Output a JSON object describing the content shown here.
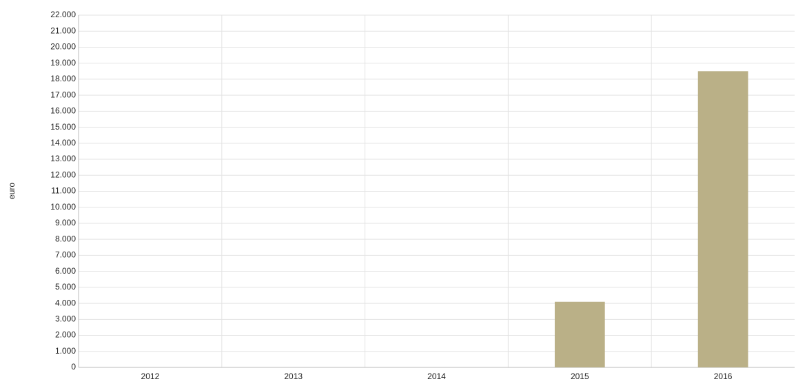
{
  "chart_data": {
    "type": "bar",
    "y_label": "euro",
    "categories": [
      "2012",
      "2013",
      "2014",
      "2015",
      "2016"
    ],
    "values": [
      0,
      0,
      0,
      4100,
      18500
    ],
    "color": "#bab087",
    "ylim": [
      0,
      22000
    ],
    "yticks": [
      0,
      {
        "value": 1000,
        "label": "1.000"
      },
      {
        "value": 2000,
        "label": "2.000"
      },
      {
        "value": 3000,
        "label": "3.000"
      },
      {
        "value": 4000,
        "label": "4.000"
      },
      {
        "value": 5000,
        "label": "5.000"
      },
      {
        "value": 6000,
        "label": "6.000"
      },
      {
        "value": 7000,
        "label": "7.000"
      },
      {
        "value": 8000,
        "label": "8.000"
      },
      {
        "value": 9000,
        "label": "9.000"
      },
      {
        "value": 10000,
        "label": "10.000"
      },
      {
        "value": 11000,
        "label": "11.000"
      },
      {
        "value": 12000,
        "label": "12.000"
      },
      {
        "value": 13000,
        "label": "13.000"
      },
      {
        "value": 14000,
        "label": "14.000"
      },
      {
        "value": 15000,
        "label": "15.000"
      },
      {
        "value": 16000,
        "label": "16.000"
      },
      {
        "value": 17000,
        "label": "17.000"
      },
      {
        "value": 18000,
        "label": "18.000"
      },
      {
        "value": 19000,
        "label": "19.000"
      },
      {
        "value": 20000,
        "label": "20.000"
      },
      {
        "value": 21000,
        "label": "21.000"
      },
      {
        "value": 22000,
        "label": "22.000"
      }
    ],
    "grid": true
  }
}
